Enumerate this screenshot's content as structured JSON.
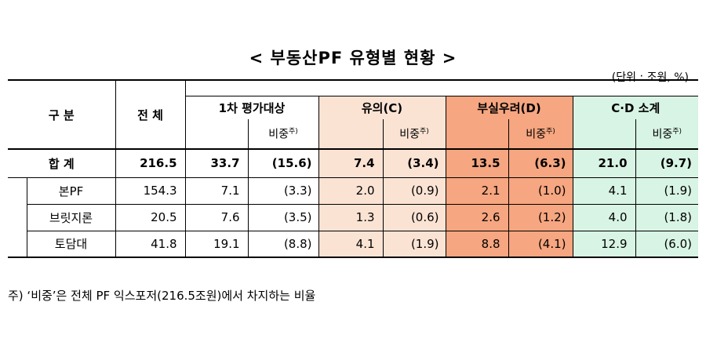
{
  "title": "< 부동산PF 유형별 현황 >",
  "unit": "(단위 : 조원, %)",
  "headers": {
    "category": "구 분",
    "total": "전 체",
    "first_eval": "1차 평가대상",
    "caution": "유의(C)",
    "insolvency_risk": "부실우려(D)",
    "cd_subtotal": "C·D 소계",
    "ratio": "비중",
    "ratio_mark": "주)"
  },
  "rows": [
    {
      "label": "합 계",
      "total": "216.5",
      "eval": "33.7",
      "eval_pct": "(15.6)",
      "c": "7.4",
      "c_pct": "(3.4)",
      "d": "13.5",
      "d_pct": "(6.3)",
      "cd": "21.0",
      "cd_pct": "(9.7)"
    },
    {
      "label": "본PF",
      "total": "154.3",
      "eval": "7.1",
      "eval_pct": "(3.3)",
      "c": "2.0",
      "c_pct": "(0.9)",
      "d": "2.1",
      "d_pct": "(1.0)",
      "cd": "4.1",
      "cd_pct": "(1.9)"
    },
    {
      "label": "브릿지론",
      "total": "20.5",
      "eval": "7.6",
      "eval_pct": "(3.5)",
      "c": "1.3",
      "c_pct": "(0.6)",
      "d": "2.6",
      "d_pct": "(1.2)",
      "cd": "4.0",
      "cd_pct": "(1.8)"
    },
    {
      "label": "토담대",
      "total": "41.8",
      "eval": "19.1",
      "eval_pct": "(8.8)",
      "c": "4.1",
      "c_pct": "(1.9)",
      "d": "8.8",
      "d_pct": "(4.1)",
      "cd": "12.9",
      "cd_pct": "(6.0)"
    }
  ],
  "note": "주) ‘비중’은 전체 PF 익스포저(216.5조원)에서 차지하는 비율"
}
